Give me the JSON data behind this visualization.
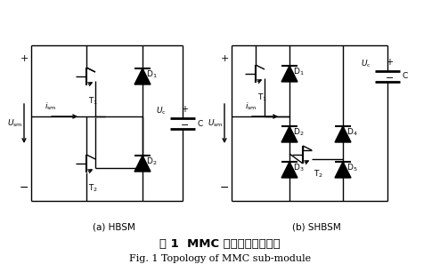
{
  "title_cn": "图 1  MMC 子模块结构示意图",
  "title_en": "Fig. 1 Topology of MMC sub-module",
  "label_a": "(a) HBSM",
  "label_b": "(b) SHBSM",
  "bg_color": "#ffffff",
  "line_color": "#000000",
  "figsize": [
    4.94,
    3.06
  ],
  "dpi": 100
}
